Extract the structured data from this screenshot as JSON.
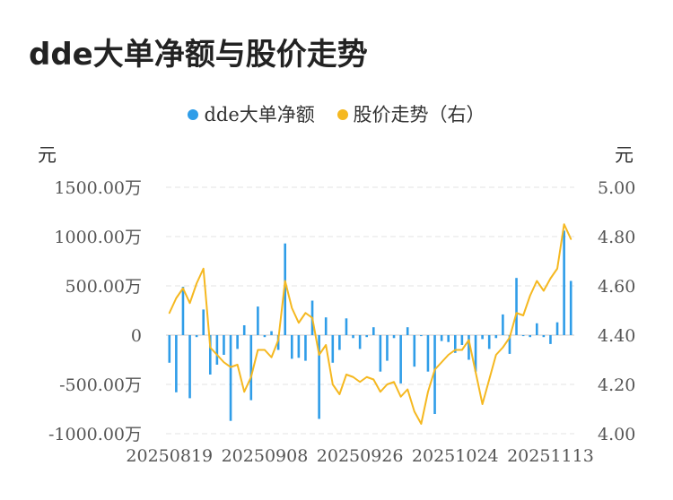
{
  "title": "dde大单净额与股价走势",
  "legend": [
    {
      "label": "dde大单净额",
      "color": "#2f9de8"
    },
    {
      "label": "股价走势（右）",
      "color": "#f5b820"
    }
  ],
  "left_unit": "元",
  "right_unit": "元",
  "colors": {
    "bar": "#2f9de8",
    "line": "#f5b820",
    "grid": "#e3e3e3"
  },
  "chart_data": {
    "type": "bar+line",
    "title": "dde大单净额与股价走势",
    "y_left": {
      "ticks": [
        "1500.00万",
        "1000.00万",
        "500.00万",
        "0",
        "-500.00万",
        "-1000.00万"
      ],
      "tick_values": [
        1500,
        1000,
        500,
        0,
        -500,
        -1000
      ],
      "ylim": [
        -1000,
        1500
      ],
      "unit": "元"
    },
    "y_right": {
      "ticks": [
        "5.00",
        "4.80",
        "4.60",
        "4.40",
        "4.20",
        "4.00"
      ],
      "tick_values": [
        5.0,
        4.8,
        4.6,
        4.4,
        4.2,
        4.0
      ],
      "ylim": [
        4.0,
        5.0
      ],
      "unit": "元"
    },
    "x_tick_labels": [
      {
        "label": "20250819",
        "index": 0
      },
      {
        "label": "20250908",
        "index": 14
      },
      {
        "label": "20250926",
        "index": 28
      },
      {
        "label": "20251024",
        "index": 42
      },
      {
        "label": "20251113",
        "index": 56
      }
    ],
    "grid": true,
    "legend_position": "top",
    "series": [
      {
        "name": "dde大单净额",
        "type": "bar",
        "axis": "left",
        "values": [
          -280,
          -580,
          490,
          -640,
          -20,
          260,
          -400,
          -300,
          -200,
          -870,
          -140,
          100,
          -660,
          290,
          -20,
          40,
          -150,
          930,
          -240,
          -230,
          -260,
          350,
          -850,
          180,
          -280,
          -150,
          170,
          -30,
          -140,
          -20,
          80,
          -370,
          -260,
          -30,
          -490,
          80,
          -320,
          -10,
          -370,
          -800,
          -60,
          -70,
          -180,
          -100,
          -250,
          -370,
          -40,
          -140,
          -30,
          210,
          -190,
          580,
          -10,
          -20,
          120,
          -20,
          -90,
          130,
          1060,
          550
        ]
      },
      {
        "name": "股价走势（右）",
        "type": "line",
        "axis": "right",
        "values": [
          4.49,
          4.55,
          4.59,
          4.53,
          4.61,
          4.67,
          4.35,
          4.32,
          4.29,
          4.27,
          4.28,
          4.17,
          4.23,
          4.34,
          4.34,
          4.31,
          4.38,
          4.62,
          4.51,
          4.45,
          4.49,
          4.47,
          4.32,
          4.36,
          4.2,
          4.16,
          4.24,
          4.23,
          4.21,
          4.23,
          4.22,
          4.17,
          4.2,
          4.21,
          4.15,
          4.18,
          4.09,
          4.04,
          4.17,
          4.26,
          4.29,
          4.32,
          4.34,
          4.34,
          4.38,
          4.25,
          4.12,
          4.22,
          4.32,
          4.35,
          4.39,
          4.49,
          4.48,
          4.56,
          4.62,
          4.58,
          4.63,
          4.67,
          4.85,
          4.79
        ]
      }
    ]
  }
}
